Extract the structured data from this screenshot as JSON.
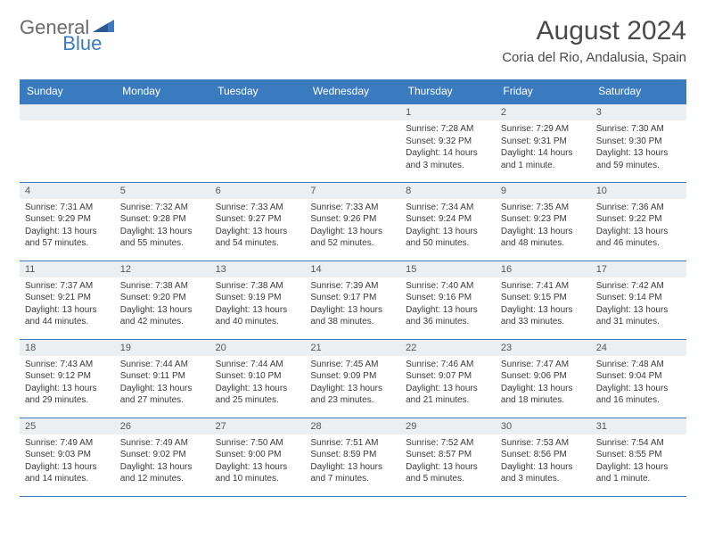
{
  "logo": {
    "text1": "General",
    "text2": "Blue"
  },
  "title": "August 2024",
  "location": "Coria del Rio, Andalusia, Spain",
  "colors": {
    "header_bg": "#3a7bc0",
    "header_text": "#ffffff",
    "daynum_bg": "#eceff1",
    "border": "#3a7bc0",
    "logo_gray": "#6b6b6b",
    "logo_blue": "#3a7bc0",
    "body_text": "#3a3a3a"
  },
  "typography": {
    "title_fontsize": 30,
    "location_fontsize": 15,
    "dayheader_fontsize": 12,
    "daynum_fontsize": 11,
    "content_fontsize": 10
  },
  "day_headers": [
    "Sunday",
    "Monday",
    "Tuesday",
    "Wednesday",
    "Thursday",
    "Friday",
    "Saturday"
  ],
  "weeks": [
    [
      null,
      null,
      null,
      null,
      {
        "n": "1",
        "sunrise": "Sunrise: 7:28 AM",
        "sunset": "Sunset: 9:32 PM",
        "daylight": "Daylight: 14 hours and 3 minutes."
      },
      {
        "n": "2",
        "sunrise": "Sunrise: 7:29 AM",
        "sunset": "Sunset: 9:31 PM",
        "daylight": "Daylight: 14 hours and 1 minute."
      },
      {
        "n": "3",
        "sunrise": "Sunrise: 7:30 AM",
        "sunset": "Sunset: 9:30 PM",
        "daylight": "Daylight: 13 hours and 59 minutes."
      }
    ],
    [
      {
        "n": "4",
        "sunrise": "Sunrise: 7:31 AM",
        "sunset": "Sunset: 9:29 PM",
        "daylight": "Daylight: 13 hours and 57 minutes."
      },
      {
        "n": "5",
        "sunrise": "Sunrise: 7:32 AM",
        "sunset": "Sunset: 9:28 PM",
        "daylight": "Daylight: 13 hours and 55 minutes."
      },
      {
        "n": "6",
        "sunrise": "Sunrise: 7:33 AM",
        "sunset": "Sunset: 9:27 PM",
        "daylight": "Daylight: 13 hours and 54 minutes."
      },
      {
        "n": "7",
        "sunrise": "Sunrise: 7:33 AM",
        "sunset": "Sunset: 9:26 PM",
        "daylight": "Daylight: 13 hours and 52 minutes."
      },
      {
        "n": "8",
        "sunrise": "Sunrise: 7:34 AM",
        "sunset": "Sunset: 9:24 PM",
        "daylight": "Daylight: 13 hours and 50 minutes."
      },
      {
        "n": "9",
        "sunrise": "Sunrise: 7:35 AM",
        "sunset": "Sunset: 9:23 PM",
        "daylight": "Daylight: 13 hours and 48 minutes."
      },
      {
        "n": "10",
        "sunrise": "Sunrise: 7:36 AM",
        "sunset": "Sunset: 9:22 PM",
        "daylight": "Daylight: 13 hours and 46 minutes."
      }
    ],
    [
      {
        "n": "11",
        "sunrise": "Sunrise: 7:37 AM",
        "sunset": "Sunset: 9:21 PM",
        "daylight": "Daylight: 13 hours and 44 minutes."
      },
      {
        "n": "12",
        "sunrise": "Sunrise: 7:38 AM",
        "sunset": "Sunset: 9:20 PM",
        "daylight": "Daylight: 13 hours and 42 minutes."
      },
      {
        "n": "13",
        "sunrise": "Sunrise: 7:38 AM",
        "sunset": "Sunset: 9:19 PM",
        "daylight": "Daylight: 13 hours and 40 minutes."
      },
      {
        "n": "14",
        "sunrise": "Sunrise: 7:39 AM",
        "sunset": "Sunset: 9:17 PM",
        "daylight": "Daylight: 13 hours and 38 minutes."
      },
      {
        "n": "15",
        "sunrise": "Sunrise: 7:40 AM",
        "sunset": "Sunset: 9:16 PM",
        "daylight": "Daylight: 13 hours and 36 minutes."
      },
      {
        "n": "16",
        "sunrise": "Sunrise: 7:41 AM",
        "sunset": "Sunset: 9:15 PM",
        "daylight": "Daylight: 13 hours and 33 minutes."
      },
      {
        "n": "17",
        "sunrise": "Sunrise: 7:42 AM",
        "sunset": "Sunset: 9:14 PM",
        "daylight": "Daylight: 13 hours and 31 minutes."
      }
    ],
    [
      {
        "n": "18",
        "sunrise": "Sunrise: 7:43 AM",
        "sunset": "Sunset: 9:12 PM",
        "daylight": "Daylight: 13 hours and 29 minutes."
      },
      {
        "n": "19",
        "sunrise": "Sunrise: 7:44 AM",
        "sunset": "Sunset: 9:11 PM",
        "daylight": "Daylight: 13 hours and 27 minutes."
      },
      {
        "n": "20",
        "sunrise": "Sunrise: 7:44 AM",
        "sunset": "Sunset: 9:10 PM",
        "daylight": "Daylight: 13 hours and 25 minutes."
      },
      {
        "n": "21",
        "sunrise": "Sunrise: 7:45 AM",
        "sunset": "Sunset: 9:09 PM",
        "daylight": "Daylight: 13 hours and 23 minutes."
      },
      {
        "n": "22",
        "sunrise": "Sunrise: 7:46 AM",
        "sunset": "Sunset: 9:07 PM",
        "daylight": "Daylight: 13 hours and 21 minutes."
      },
      {
        "n": "23",
        "sunrise": "Sunrise: 7:47 AM",
        "sunset": "Sunset: 9:06 PM",
        "daylight": "Daylight: 13 hours and 18 minutes."
      },
      {
        "n": "24",
        "sunrise": "Sunrise: 7:48 AM",
        "sunset": "Sunset: 9:04 PM",
        "daylight": "Daylight: 13 hours and 16 minutes."
      }
    ],
    [
      {
        "n": "25",
        "sunrise": "Sunrise: 7:49 AM",
        "sunset": "Sunset: 9:03 PM",
        "daylight": "Daylight: 13 hours and 14 minutes."
      },
      {
        "n": "26",
        "sunrise": "Sunrise: 7:49 AM",
        "sunset": "Sunset: 9:02 PM",
        "daylight": "Daylight: 13 hours and 12 minutes."
      },
      {
        "n": "27",
        "sunrise": "Sunrise: 7:50 AM",
        "sunset": "Sunset: 9:00 PM",
        "daylight": "Daylight: 13 hours and 10 minutes."
      },
      {
        "n": "28",
        "sunrise": "Sunrise: 7:51 AM",
        "sunset": "Sunset: 8:59 PM",
        "daylight": "Daylight: 13 hours and 7 minutes."
      },
      {
        "n": "29",
        "sunrise": "Sunrise: 7:52 AM",
        "sunset": "Sunset: 8:57 PM",
        "daylight": "Daylight: 13 hours and 5 minutes."
      },
      {
        "n": "30",
        "sunrise": "Sunrise: 7:53 AM",
        "sunset": "Sunset: 8:56 PM",
        "daylight": "Daylight: 13 hours and 3 minutes."
      },
      {
        "n": "31",
        "sunrise": "Sunrise: 7:54 AM",
        "sunset": "Sunset: 8:55 PM",
        "daylight": "Daylight: 13 hours and 1 minute."
      }
    ]
  ]
}
